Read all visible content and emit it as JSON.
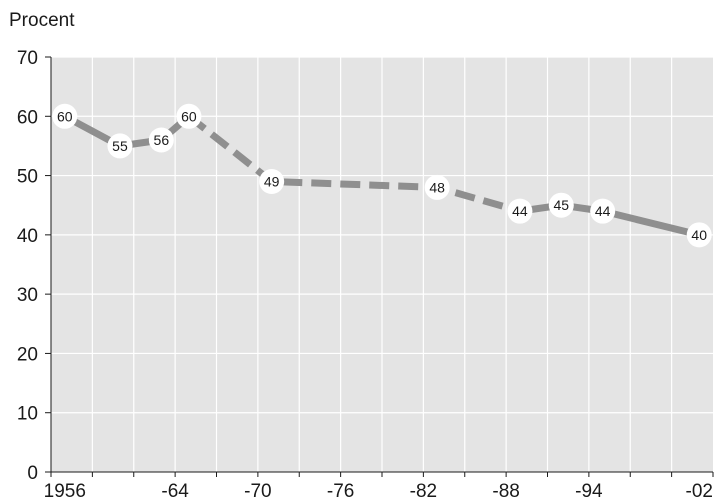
{
  "chart_data": {
    "type": "line",
    "title": "",
    "xlabel": "",
    "ylabel": "Procent",
    "ylim": [
      0,
      70
    ],
    "yticks": [
      "0",
      "10",
      "20",
      "30",
      "40",
      "50",
      "60",
      "70"
    ],
    "xlim": [
      1955,
      2003
    ],
    "xticks": [
      {
        "value": 1956,
        "label": "1956"
      },
      {
        "value": 1964,
        "label": "-64"
      },
      {
        "value": 1970,
        "label": "-70"
      },
      {
        "value": 1976,
        "label": "-76"
      },
      {
        "value": 1982,
        "label": "-82"
      },
      {
        "value": 1988,
        "label": "-88"
      },
      {
        "value": 1994,
        "label": "-94"
      },
      {
        "value": 2002,
        "label": "-02"
      }
    ],
    "grid": true,
    "colors": {
      "plot_background": "#e4e4e4",
      "line": "#8f8f8f",
      "grid": "#ffffff"
    },
    "segments": [
      {
        "style": "solid",
        "from": 0,
        "to": 3
      },
      {
        "style": "dashed",
        "from": 3,
        "to": 6
      },
      {
        "style": "solid",
        "from": 6,
        "to": 9
      }
    ],
    "points": [
      {
        "x": 1956,
        "y": 60,
        "label": "60"
      },
      {
        "x": 1960,
        "y": 55,
        "label": "55"
      },
      {
        "x": 1963,
        "y": 56,
        "label": "56"
      },
      {
        "x": 1965,
        "y": 60,
        "label": "60"
      },
      {
        "x": 1971,
        "y": 49,
        "label": "49"
      },
      {
        "x": 1983,
        "y": 48,
        "label": "48"
      },
      {
        "x": 1989,
        "y": 44,
        "label": "44"
      },
      {
        "x": 1992,
        "y": 45,
        "label": "45"
      },
      {
        "x": 1995,
        "y": 44,
        "label": "44"
      },
      {
        "x": 2002,
        "y": 40,
        "label": "40"
      }
    ]
  }
}
